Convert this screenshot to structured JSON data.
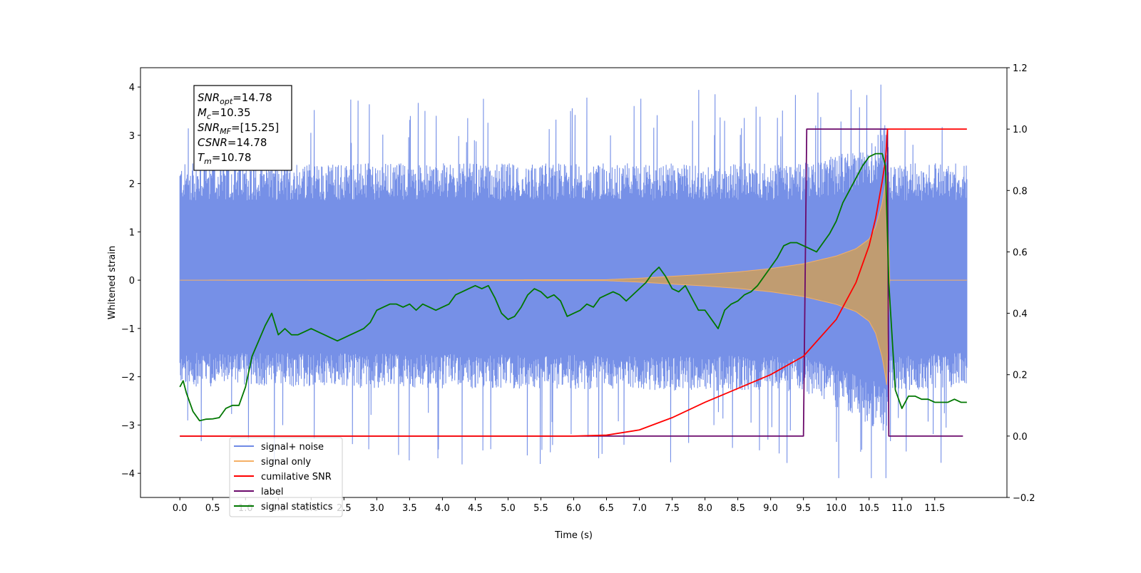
{
  "chart_data": {
    "type": "line",
    "xlabel": "Time (s)",
    "ylabel": "Whitened strain",
    "xlim": [
      -0.6,
      12.6
    ],
    "ylim_left": [
      -4.5,
      4.4
    ],
    "ylim_right": [
      -0.2,
      1.2
    ],
    "x_ticks": [
      0.0,
      0.5,
      1.0,
      1.5,
      2.0,
      2.5,
      3.0,
      3.5,
      4.0,
      4.5,
      5.0,
      5.5,
      6.0,
      6.5,
      7.0,
      7.5,
      8.0,
      8.5,
      9.0,
      9.5,
      10.0,
      10.5,
      11.0,
      11.5
    ],
    "x_tick_labels": [
      "0.0",
      "0.5",
      "1.0",
      "1.5",
      "2.0",
      "2.5",
      "3.0",
      "3.5",
      "4.0",
      "4.5",
      "5.0",
      "5.5",
      "6.0",
      "6.5",
      "7.0",
      "7.5",
      "8.0",
      "8.5",
      "9.0",
      "9.5",
      "10.0",
      "10.5",
      "11.0",
      "11.5"
    ],
    "y_left_ticks": [
      4,
      3,
      2,
      1,
      0,
      -1,
      -2,
      -3,
      -4
    ],
    "y_left_tick_labels": [
      "4",
      "3",
      "2",
      "1",
      "0",
      "−1",
      "−2",
      "−3",
      "−4"
    ],
    "y_right_ticks": [
      1.2,
      1.0,
      0.8,
      0.6,
      0.4,
      0.2,
      0.0,
      -0.2
    ],
    "y_right_tick_labels": [
      "1.2",
      "1.0",
      "0.8",
      "0.6",
      "0.4",
      "0.2",
      "0.0",
      "−0.2"
    ],
    "grid": false,
    "legend_position": "lower-left",
    "info_box": {
      "lines": [
        {
          "sym": "SNR",
          "sub": "opt",
          "value": "=14.78"
        },
        {
          "sym": "M",
          "sub": "c",
          "value": "=10.35"
        },
        {
          "sym": "SNR",
          "sub": "MF",
          "value": "=[15.25]"
        },
        {
          "sym": "CSNR",
          "sub": "",
          "value": "=14.78"
        },
        {
          "sym": "T",
          "sub": "m",
          "value": "=10.78"
        }
      ]
    },
    "series": [
      {
        "name": "signal+ noise",
        "axis": "left",
        "color": "#6f8ae6",
        "envelope": {
          "x": [
            0.0,
            9.5,
            10.0,
            10.5,
            10.78,
            10.8,
            11.99
          ],
          "upper_typical": [
            2.2,
            2.2,
            2.35,
            2.6,
            3.0,
            2.2,
            2.2
          ],
          "lower_typical": [
            -2.0,
            -2.1,
            -2.4,
            -2.7,
            -3.0,
            -2.1,
            -2.0
          ],
          "peak_max": 4.05,
          "peak_min": -4.1
        }
      },
      {
        "name": "signal only",
        "axis": "left",
        "color": "#f5b066",
        "amplitude": {
          "x": [
            0.0,
            6.5,
            7.0,
            7.5,
            8.0,
            8.5,
            9.0,
            9.5,
            10.0,
            10.3,
            10.5,
            10.6,
            10.7,
            10.75,
            10.78,
            10.8,
            11.99
          ],
          "y": [
            0.0,
            0.01,
            0.04,
            0.08,
            0.12,
            0.17,
            0.24,
            0.34,
            0.5,
            0.65,
            0.85,
            1.1,
            1.6,
            2.0,
            2.3,
            0.0,
            0.0
          ]
        }
      },
      {
        "name": "cumilative SNR",
        "axis": "right",
        "color": "#ff0000",
        "x": [
          0.0,
          6.0,
          6.5,
          7.0,
          7.5,
          8.0,
          8.5,
          9.0,
          9.5,
          10.0,
          10.3,
          10.5,
          10.6,
          10.7,
          10.75,
          10.78,
          10.8,
          11.99
        ],
        "y": [
          0.0,
          0.0,
          0.003,
          0.02,
          0.06,
          0.11,
          0.155,
          0.2,
          0.26,
          0.38,
          0.5,
          0.62,
          0.71,
          0.83,
          0.9,
          1.0,
          1.0,
          1.0
        ]
      },
      {
        "name": "label",
        "axis": "right",
        "color": "#6b0a6b",
        "x": [
          0.0,
          9.5,
          9.55,
          10.78,
          10.8,
          11.93
        ],
        "y": [
          0.0,
          0.0,
          1.0,
          1.0,
          0.0,
          0.0
        ]
      },
      {
        "name": "signal statistics",
        "axis": "right",
        "color": "#007700",
        "x": [
          0.0,
          0.05,
          0.1,
          0.2,
          0.3,
          0.4,
          0.5,
          0.6,
          0.7,
          0.8,
          0.9,
          1.0,
          1.1,
          1.2,
          1.3,
          1.4,
          1.5,
          1.6,
          1.7,
          1.8,
          1.9,
          2.0,
          2.1,
          2.2,
          2.3,
          2.4,
          2.5,
          2.6,
          2.7,
          2.8,
          2.9,
          3.0,
          3.1,
          3.2,
          3.3,
          3.4,
          3.5,
          3.6,
          3.7,
          3.8,
          3.9,
          4.0,
          4.1,
          4.2,
          4.3,
          4.4,
          4.5,
          4.6,
          4.7,
          4.8,
          4.9,
          5.0,
          5.1,
          5.2,
          5.3,
          5.4,
          5.5,
          5.6,
          5.7,
          5.8,
          5.9,
          6.0,
          6.1,
          6.2,
          6.3,
          6.4,
          6.5,
          6.6,
          6.7,
          6.8,
          6.9,
          7.0,
          7.1,
          7.2,
          7.3,
          7.4,
          7.5,
          7.6,
          7.7,
          7.8,
          7.9,
          8.0,
          8.1,
          8.2,
          8.3,
          8.4,
          8.5,
          8.6,
          8.7,
          8.8,
          8.9,
          9.0,
          9.1,
          9.2,
          9.3,
          9.4,
          9.5,
          9.6,
          9.7,
          9.8,
          9.9,
          10.0,
          10.1,
          10.2,
          10.3,
          10.4,
          10.5,
          10.6,
          10.7,
          10.75,
          10.8,
          10.9,
          11.0,
          11.1,
          11.2,
          11.3,
          11.4,
          11.5,
          11.6,
          11.7,
          11.8,
          11.9,
          11.99
        ],
        "y": [
          0.16,
          0.18,
          0.14,
          0.08,
          0.05,
          0.055,
          0.056,
          0.06,
          0.09,
          0.1,
          0.1,
          0.16,
          0.26,
          0.31,
          0.36,
          0.4,
          0.33,
          0.35,
          0.33,
          0.33,
          0.34,
          0.35,
          0.34,
          0.33,
          0.32,
          0.31,
          0.32,
          0.33,
          0.34,
          0.35,
          0.37,
          0.41,
          0.42,
          0.43,
          0.43,
          0.42,
          0.43,
          0.41,
          0.43,
          0.42,
          0.41,
          0.42,
          0.43,
          0.46,
          0.47,
          0.48,
          0.49,
          0.48,
          0.49,
          0.45,
          0.4,
          0.38,
          0.39,
          0.42,
          0.46,
          0.48,
          0.47,
          0.45,
          0.46,
          0.44,
          0.39,
          0.4,
          0.41,
          0.43,
          0.42,
          0.45,
          0.46,
          0.47,
          0.46,
          0.44,
          0.46,
          0.48,
          0.5,
          0.53,
          0.55,
          0.52,
          0.48,
          0.47,
          0.49,
          0.45,
          0.41,
          0.41,
          0.38,
          0.35,
          0.41,
          0.43,
          0.44,
          0.46,
          0.47,
          0.49,
          0.52,
          0.55,
          0.58,
          0.62,
          0.63,
          0.63,
          0.62,
          0.61,
          0.6,
          0.63,
          0.66,
          0.7,
          0.76,
          0.8,
          0.84,
          0.88,
          0.91,
          0.92,
          0.92,
          0.88,
          0.5,
          0.15,
          0.09,
          0.13,
          0.13,
          0.12,
          0.12,
          0.11,
          0.11,
          0.11,
          0.12,
          0.11,
          0.11
        ]
      }
    ]
  }
}
